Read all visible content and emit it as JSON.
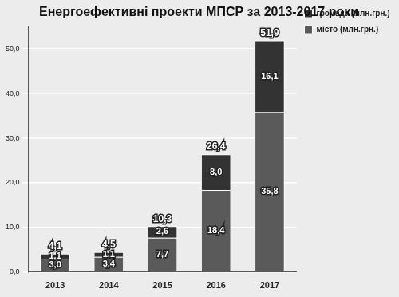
{
  "chart_data": {
    "type": "bar",
    "title": "Енергоефективні проекти МПСР за 2013-2017 роки",
    "categories": [
      "2013",
      "2014",
      "2015",
      "2016",
      "2017"
    ],
    "series": [
      {
        "name": "місто (млн.грн.)",
        "color": "#5a5a5a",
        "values": [
          3.0,
          3.4,
          7.7,
          18.4,
          35.8
        ],
        "value_labels": [
          "3,0",
          "3,4",
          "7,7",
          "18,4",
          "35,8"
        ]
      },
      {
        "name": "громада (млн.грн.)",
        "color": "#333333",
        "values": [
          1.1,
          1.1,
          2.6,
          8.0,
          16.1
        ],
        "value_labels": [
          "1,1",
          "1,1",
          "2,6",
          "8,0",
          "16,1"
        ]
      }
    ],
    "totals": {
      "values": [
        4.1,
        4.5,
        10.3,
        26.4,
        51.9
      ],
      "value_labels": [
        "4,1",
        "4,5",
        "10,3",
        "26,4",
        "51,9"
      ]
    },
    "stacked": true,
    "data_labels": true,
    "legend": "right",
    "grid": true,
    "ylim": [
      0,
      55
    ],
    "yticks": [
      {
        "value": 0,
        "label": "0,0"
      },
      {
        "value": 10,
        "label": "10,0"
      },
      {
        "value": 20,
        "label": "20,0"
      },
      {
        "value": 30,
        "label": "30,0"
      },
      {
        "value": 40,
        "label": "40,0"
      },
      {
        "value": 50,
        "label": "50,0"
      }
    ]
  }
}
